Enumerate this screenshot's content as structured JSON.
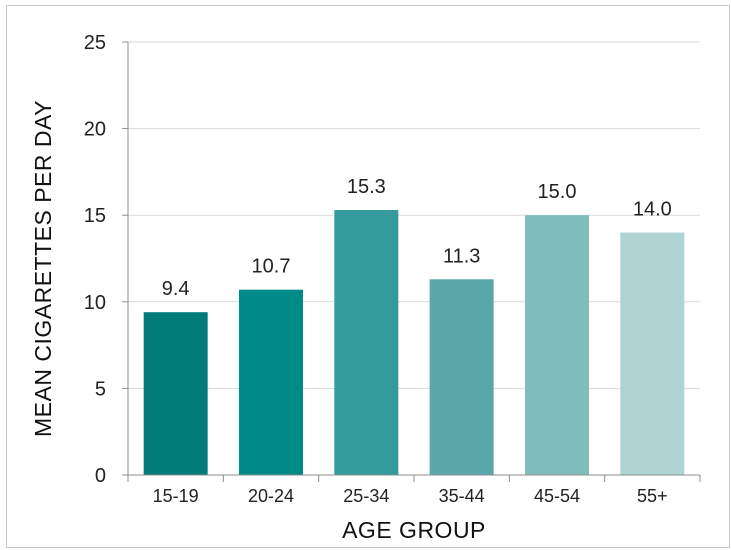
{
  "chart_data": {
    "type": "bar",
    "categories": [
      "15-19",
      "20-24",
      "25-34",
      "35-44",
      "45-54",
      "55+"
    ],
    "values": [
      9.4,
      10.7,
      15.3,
      11.3,
      15.0,
      14.0
    ],
    "value_labels": [
      "9.4",
      "10.7",
      "15.3",
      "11.3",
      "15.0",
      "14.0"
    ],
    "bar_colors": [
      "#007d7b",
      "#008a8a",
      "#339b9b",
      "#5aa7a9",
      "#80bdbd",
      "#b0d4d4"
    ],
    "xlabel": "AGE GROUP",
    "ylabel": "MEAN CIGARETTES PER DAY",
    "ylim": [
      0,
      25
    ],
    "yticks": [
      0,
      5,
      10,
      15,
      20,
      25
    ],
    "ytick_labels": [
      "0",
      "5",
      "10",
      "15",
      "20",
      "25"
    ],
    "grid": true,
    "legend": "none"
  }
}
